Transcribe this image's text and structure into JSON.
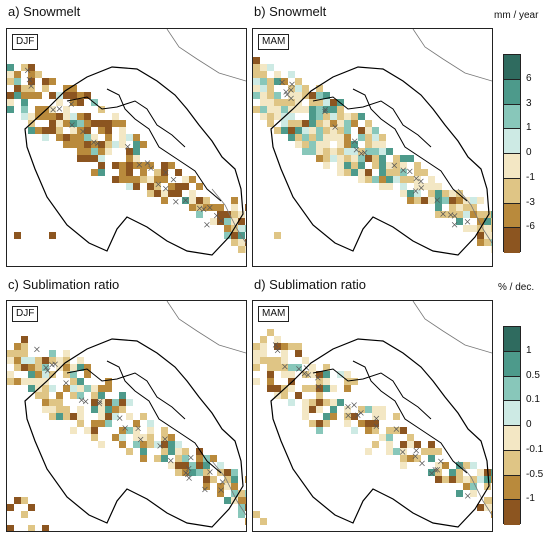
{
  "panels": [
    {
      "title": "a) Snowmelt",
      "season": "DJF"
    },
    {
      "title": "b) Snowmelt",
      "season": "MAM"
    },
    {
      "title": "c) Sublimation ratio",
      "season": "DJF"
    },
    {
      "title": "d) Sublimation ratio",
      "season": "MAM"
    }
  ],
  "colorbars": [
    {
      "unit": "mm / year",
      "ticks": [
        "6",
        "3",
        "1",
        "0",
        "-1",
        "-3",
        "-6"
      ]
    },
    {
      "unit": "% / dec.",
      "ticks": [
        "1",
        "0.5",
        "0.1",
        "0",
        "-0.1",
        "-0.5",
        "-1"
      ]
    }
  ],
  "colors": {
    "palette": [
      "#2f6b5f",
      "#4d9a8b",
      "#88c7ba",
      "#cdeae4",
      "#f3e7c4",
      "#dfc585",
      "#b98a3c",
      "#8c5520"
    ],
    "hatch": "#555555",
    "boundary": "#000000",
    "coastline": "#777777"
  }
}
